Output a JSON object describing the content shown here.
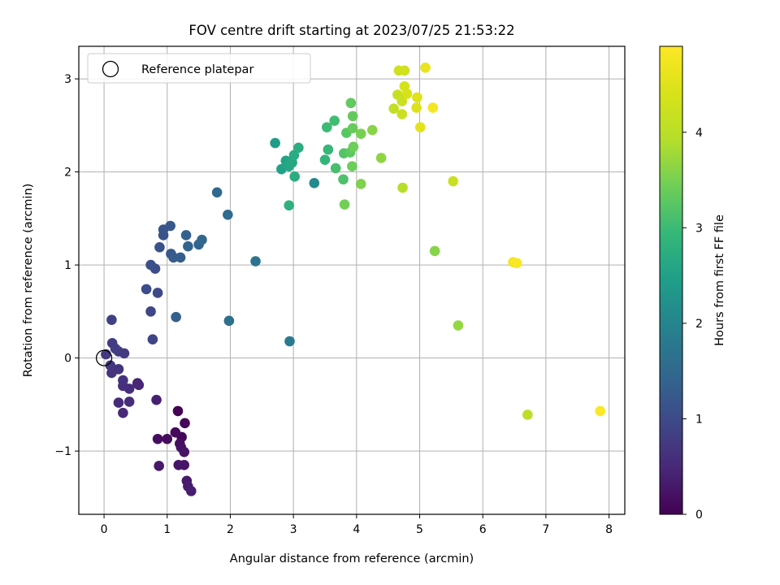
{
  "chart_data": {
    "type": "scatter",
    "title": "FOV centre drift starting at 2023/07/25 21:53:22",
    "xlabel": "Angular distance from reference (arcmin)",
    "ylabel": "Rotation from reference (arcmin)",
    "xlim": [
      -0.4,
      8.25
    ],
    "ylim": [
      -1.68,
      3.35
    ],
    "xticks": [
      0,
      1,
      2,
      3,
      4,
      5,
      6,
      7,
      8
    ],
    "xtick_labels": [
      "0",
      "1",
      "2",
      "3",
      "4",
      "5",
      "6",
      "7",
      "8"
    ],
    "yticks": [
      -1,
      0,
      1,
      2,
      3
    ],
    "ytick_labels": [
      "−1",
      "0",
      "1",
      "2",
      "3"
    ],
    "grid": true,
    "legend": {
      "placement": "top-left",
      "entries": [
        "Reference platepar"
      ]
    },
    "reference_point": {
      "x": 0,
      "y": 0,
      "marker": "open-circle"
    },
    "colorbar": {
      "label": "Hours from first FF file",
      "colormap": "viridis",
      "range": [
        0,
        4.9
      ],
      "ticks": [
        0,
        1,
        2,
        3,
        4
      ],
      "tick_labels": [
        "0",
        "1",
        "2",
        "3",
        "4"
      ]
    },
    "points": [
      {
        "x": 1.17,
        "y": -0.57,
        "c": 0.02
      },
      {
        "x": 1.23,
        "y": -0.85,
        "c": 0.05
      },
      {
        "x": 1.28,
        "y": -0.7,
        "c": 0.07
      },
      {
        "x": 1.13,
        "y": -0.8,
        "c": 0.1
      },
      {
        "x": 1.0,
        "y": -0.87,
        "c": 0.12
      },
      {
        "x": 0.85,
        "y": -0.87,
        "c": 0.15
      },
      {
        "x": 1.2,
        "y": -0.92,
        "c": 0.17
      },
      {
        "x": 1.22,
        "y": -0.96,
        "c": 0.2
      },
      {
        "x": 1.27,
        "y": -1.01,
        "c": 0.22
      },
      {
        "x": 1.18,
        "y": -1.15,
        "c": 0.25
      },
      {
        "x": 1.27,
        "y": -1.15,
        "c": 0.27
      },
      {
        "x": 0.87,
        "y": -1.16,
        "c": 0.3
      },
      {
        "x": 1.31,
        "y": -1.32,
        "c": 0.32
      },
      {
        "x": 1.33,
        "y": -1.38,
        "c": 0.35
      },
      {
        "x": 1.38,
        "y": -1.43,
        "c": 0.37
      },
      {
        "x": 0.83,
        "y": -0.45,
        "c": 0.4
      },
      {
        "x": 0.53,
        "y": -0.27,
        "c": 0.45
      },
      {
        "x": 0.55,
        "y": -0.29,
        "c": 0.47
      },
      {
        "x": 0.3,
        "y": -0.59,
        "c": 0.5
      },
      {
        "x": 0.23,
        "y": -0.48,
        "c": 0.52
      },
      {
        "x": 0.4,
        "y": -0.47,
        "c": 0.55
      },
      {
        "x": 0.4,
        "y": -0.33,
        "c": 0.57
      },
      {
        "x": 0.3,
        "y": -0.3,
        "c": 0.6
      },
      {
        "x": 0.3,
        "y": -0.24,
        "c": 0.62
      },
      {
        "x": 0.12,
        "y": -0.16,
        "c": 0.65
      },
      {
        "x": 0.23,
        "y": -0.12,
        "c": 0.67
      },
      {
        "x": 0.1,
        "y": -0.08,
        "c": 0.7
      },
      {
        "x": 0.03,
        "y": 0.04,
        "c": 0.72
      },
      {
        "x": 0.23,
        "y": 0.07,
        "c": 0.75
      },
      {
        "x": 0.32,
        "y": 0.05,
        "c": 0.77
      },
      {
        "x": 0.13,
        "y": 0.16,
        "c": 0.8
      },
      {
        "x": 0.18,
        "y": 0.1,
        "c": 0.82
      },
      {
        "x": 0.12,
        "y": 0.41,
        "c": 0.85
      },
      {
        "x": 0.77,
        "y": 0.2,
        "c": 0.9
      },
      {
        "x": 0.74,
        "y": 0.5,
        "c": 0.95
      },
      {
        "x": 0.85,
        "y": 0.7,
        "c": 1.0
      },
      {
        "x": 0.67,
        "y": 0.74,
        "c": 1.03
      },
      {
        "x": 0.81,
        "y": 0.96,
        "c": 1.06
      },
      {
        "x": 0.74,
        "y": 1.0,
        "c": 1.09
      },
      {
        "x": 0.88,
        "y": 1.19,
        "c": 1.12
      },
      {
        "x": 0.94,
        "y": 1.32,
        "c": 1.15
      },
      {
        "x": 0.94,
        "y": 1.38,
        "c": 1.18
      },
      {
        "x": 1.05,
        "y": 1.42,
        "c": 1.21
      },
      {
        "x": 1.06,
        "y": 1.12,
        "c": 1.24
      },
      {
        "x": 1.1,
        "y": 1.08,
        "c": 1.27
      },
      {
        "x": 1.21,
        "y": 1.08,
        "c": 1.3
      },
      {
        "x": 1.14,
        "y": 0.44,
        "c": 1.33
      },
      {
        "x": 1.3,
        "y": 1.32,
        "c": 1.36
      },
      {
        "x": 1.33,
        "y": 1.2,
        "c": 1.39
      },
      {
        "x": 1.5,
        "y": 1.22,
        "c": 1.42
      },
      {
        "x": 1.55,
        "y": 1.27,
        "c": 1.45
      },
      {
        "x": 1.79,
        "y": 1.78,
        "c": 1.5
      },
      {
        "x": 1.96,
        "y": 1.54,
        "c": 1.55
      },
      {
        "x": 1.98,
        "y": 0.4,
        "c": 1.6
      },
      {
        "x": 2.4,
        "y": 1.04,
        "c": 1.7
      },
      {
        "x": 2.94,
        "y": 0.18,
        "c": 1.8
      },
      {
        "x": 3.33,
        "y": 1.88,
        "c": 2.1
      },
      {
        "x": 2.71,
        "y": 2.31,
        "c": 2.4
      },
      {
        "x": 2.81,
        "y": 2.03,
        "c": 2.5
      },
      {
        "x": 2.88,
        "y": 2.12,
        "c": 2.55
      },
      {
        "x": 2.93,
        "y": 2.06,
        "c": 2.6
      },
      {
        "x": 2.98,
        "y": 2.1,
        "c": 2.65
      },
      {
        "x": 3.01,
        "y": 2.18,
        "c": 2.7
      },
      {
        "x": 3.02,
        "y": 1.95,
        "c": 2.72
      },
      {
        "x": 3.08,
        "y": 2.26,
        "c": 2.75
      },
      {
        "x": 2.93,
        "y": 1.64,
        "c": 2.8
      },
      {
        "x": 3.5,
        "y": 2.13,
        "c": 2.9
      },
      {
        "x": 3.55,
        "y": 2.24,
        "c": 2.95
      },
      {
        "x": 3.53,
        "y": 2.48,
        "c": 3.0
      },
      {
        "x": 3.65,
        "y": 2.55,
        "c": 3.05
      },
      {
        "x": 3.67,
        "y": 2.04,
        "c": 3.1
      },
      {
        "x": 3.79,
        "y": 1.92,
        "c": 3.15
      },
      {
        "x": 3.8,
        "y": 2.2,
        "c": 3.2
      },
      {
        "x": 3.84,
        "y": 2.42,
        "c": 3.25
      },
      {
        "x": 3.9,
        "y": 2.21,
        "c": 3.3
      },
      {
        "x": 3.91,
        "y": 2.74,
        "c": 3.32
      },
      {
        "x": 3.94,
        "y": 2.6,
        "c": 3.35
      },
      {
        "x": 3.94,
        "y": 2.47,
        "c": 3.37
      },
      {
        "x": 3.93,
        "y": 2.06,
        "c": 3.4
      },
      {
        "x": 3.95,
        "y": 2.27,
        "c": 3.42
      },
      {
        "x": 3.81,
        "y": 1.65,
        "c": 3.45
      },
      {
        "x": 4.07,
        "y": 2.41,
        "c": 3.5
      },
      {
        "x": 4.07,
        "y": 1.87,
        "c": 3.55
      },
      {
        "x": 4.25,
        "y": 2.45,
        "c": 3.6
      },
      {
        "x": 4.39,
        "y": 2.15,
        "c": 3.65
      },
      {
        "x": 5.24,
        "y": 1.15,
        "c": 3.6
      },
      {
        "x": 5.61,
        "y": 0.35,
        "c": 3.7
      },
      {
        "x": 4.73,
        "y": 1.83,
        "c": 3.95
      },
      {
        "x": 6.71,
        "y": -0.61,
        "c": 4.0
      },
      {
        "x": 5.53,
        "y": 1.9,
        "c": 4.2
      },
      {
        "x": 4.59,
        "y": 2.68,
        "c": 4.1
      },
      {
        "x": 4.65,
        "y": 2.83,
        "c": 4.15
      },
      {
        "x": 4.72,
        "y": 2.76,
        "c": 4.2
      },
      {
        "x": 4.72,
        "y": 2.62,
        "c": 4.22
      },
      {
        "x": 4.67,
        "y": 3.09,
        "c": 4.25
      },
      {
        "x": 4.76,
        "y": 3.09,
        "c": 4.3
      },
      {
        "x": 4.76,
        "y": 2.92,
        "c": 4.35
      },
      {
        "x": 4.8,
        "y": 2.84,
        "c": 4.4
      },
      {
        "x": 4.95,
        "y": 2.69,
        "c": 4.45
      },
      {
        "x": 4.96,
        "y": 2.8,
        "c": 4.5
      },
      {
        "x": 5.01,
        "y": 2.48,
        "c": 4.55
      },
      {
        "x": 5.09,
        "y": 3.12,
        "c": 4.65
      },
      {
        "x": 5.21,
        "y": 2.69,
        "c": 4.8
      },
      {
        "x": 6.48,
        "y": 1.03,
        "c": 4.8
      },
      {
        "x": 6.54,
        "y": 1.02,
        "c": 4.85
      },
      {
        "x": 7.86,
        "y": -0.57,
        "c": 4.9
      }
    ]
  }
}
